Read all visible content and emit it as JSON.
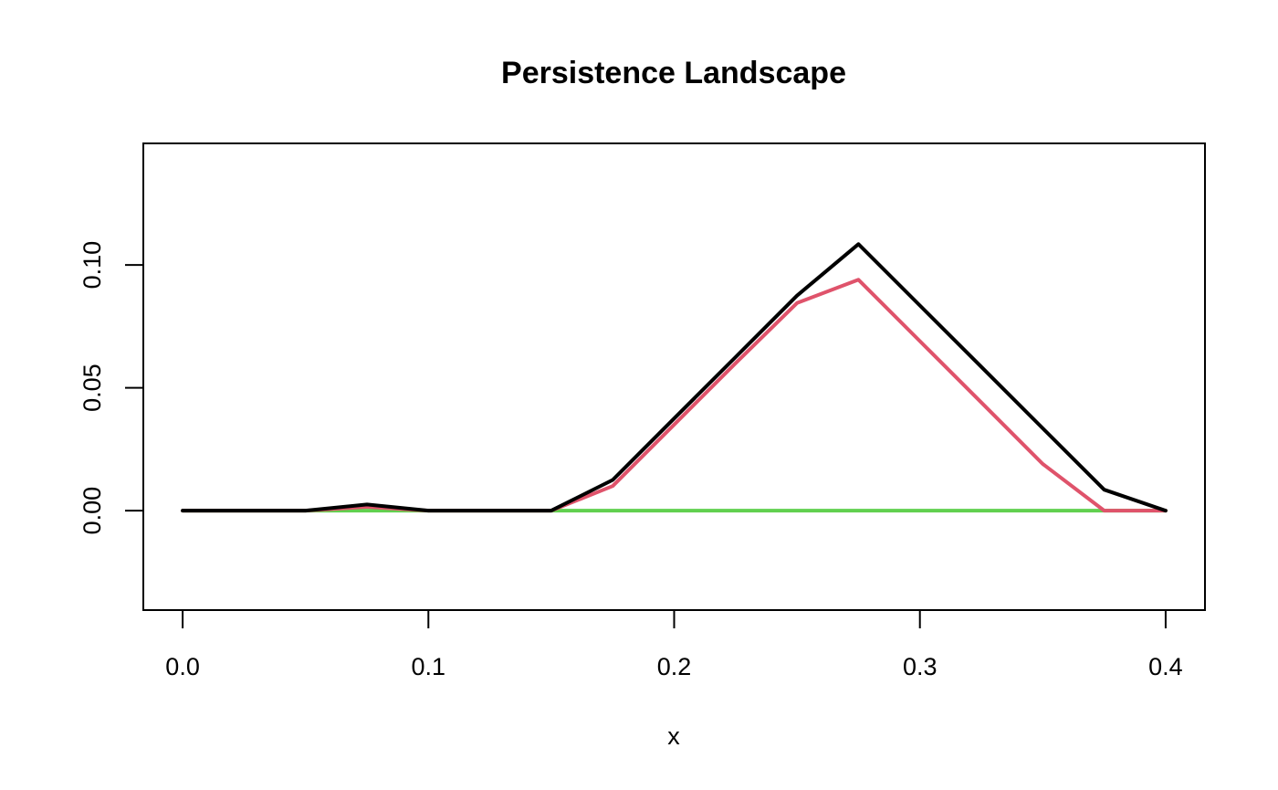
{
  "chart_data": {
    "type": "line",
    "title": "Persistence Landscape",
    "xlabel": "x",
    "ylabel": "",
    "xlim": [
      -0.016,
      0.416
    ],
    "ylim": [
      -0.0405,
      0.1495
    ],
    "x_ticks": [
      0.0,
      0.1,
      0.2,
      0.3,
      0.4
    ],
    "x_tick_labels": [
      "0.0",
      "0.1",
      "0.2",
      "0.3",
      "0.4"
    ],
    "y_ticks": [
      0.0,
      0.05,
      0.1
    ],
    "y_tick_labels": [
      "0.00",
      "0.05",
      "0.10"
    ],
    "grid": false,
    "x": [
      0.0,
      0.025,
      0.05,
      0.075,
      0.1,
      0.125,
      0.15,
      0.175,
      0.2,
      0.225,
      0.25,
      0.275,
      0.3,
      0.325,
      0.35,
      0.375,
      0.4
    ],
    "series": [
      {
        "color": "#61D04F",
        "values": [
          0,
          0,
          0,
          0,
          0,
          0,
          0,
          0,
          0,
          0,
          0,
          0,
          0,
          0,
          0,
          0,
          0
        ]
      },
      {
        "color": "#DF536B",
        "values": [
          0,
          0,
          0,
          0.0015,
          0,
          0,
          0,
          0.01,
          0.035,
          0.06,
          0.0845,
          0.094,
          0.069,
          0.044,
          0.019,
          0,
          0
        ]
      },
      {
        "color": "#000000",
        "values": [
          0,
          0,
          0,
          0.0025,
          0,
          0,
          0,
          0.0125,
          0.0375,
          0.0625,
          0.0875,
          0.1085,
          0.0835,
          0.0585,
          0.0335,
          0.0085,
          0
        ]
      }
    ]
  }
}
